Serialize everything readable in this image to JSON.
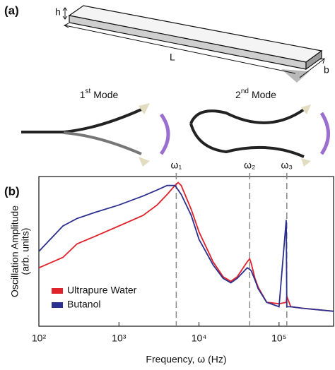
{
  "diagram": {
    "panel_label": "(a)",
    "height_label": "h",
    "length_label": "L",
    "width_label": "b",
    "modes": [
      {
        "number": "1",
        "suffix": "st",
        "word": "Mode"
      },
      {
        "number": "2",
        "suffix": "nd",
        "word": "Mode"
      }
    ]
  },
  "chart_data": {
    "type": "line",
    "panel_label": "(b)",
    "xlabel": "Frequency, ω (Hz)",
    "ylabel": [
      "Oscillation Amplitude",
      "(arb. units)"
    ],
    "xscale": "log",
    "xlim": [
      100,
      480000
    ],
    "ylim": [
      0,
      1
    ],
    "xticks": [
      {
        "value": 100,
        "label": "10²"
      },
      {
        "value": 1000,
        "label": "10³"
      },
      {
        "value": 10000,
        "label": "10⁴"
      },
      {
        "value": 100000,
        "label": "10⁵"
      }
    ],
    "markers": [
      {
        "x": 5200,
        "label": "ω₁"
      },
      {
        "x": 43000,
        "label": "ω₂"
      },
      {
        "x": 125000,
        "label": "ω₃"
      }
    ],
    "legend": "lower left",
    "x": [
      100,
      200,
      300,
      500,
      1000,
      2000,
      3000,
      4000,
      5000,
      5500,
      6000,
      8000,
      10000,
      15000,
      20000,
      25000,
      30000,
      40000,
      43000,
      45000,
      50000,
      55000,
      70000,
      100000,
      123000,
      125000,
      140000,
      200000,
      480000
    ],
    "series": [
      {
        "name": "Ultrapure Water",
        "color": "#e0222b",
        "values": [
          0.39,
          0.46,
          0.55,
          0.6,
          0.67,
          0.74,
          0.81,
          0.88,
          0.94,
          0.96,
          0.94,
          0.78,
          0.63,
          0.43,
          0.33,
          0.3,
          0.33,
          0.43,
          0.45,
          0.42,
          0.32,
          0.26,
          0.16,
          0.15,
          0.16,
          0.2,
          0.13,
          0.12,
          0.1
        ]
      },
      {
        "name": "Butanol",
        "color": "#2b2f8f",
        "values": [
          0.5,
          0.67,
          0.72,
          0.76,
          0.81,
          0.87,
          0.91,
          0.94,
          0.94,
          0.91,
          0.88,
          0.74,
          0.58,
          0.41,
          0.32,
          0.29,
          0.32,
          0.39,
          0.38,
          0.37,
          0.31,
          0.25,
          0.16,
          0.13,
          0.71,
          0.13,
          0.13,
          0.12,
          0.1
        ]
      }
    ]
  }
}
